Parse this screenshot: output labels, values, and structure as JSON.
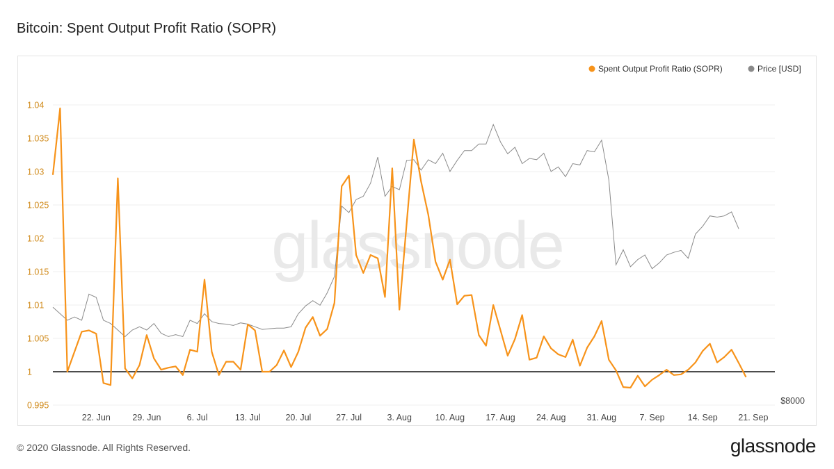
{
  "page": {
    "title": "Bitcoin: Spent Output Profit Ratio (SOPR)",
    "copyright": "© 2020 Glassnode. All Rights Reserved.",
    "logo_text": "glassnode",
    "watermark": "glassnode"
  },
  "colors": {
    "sopr": "#f7931a",
    "price": "#8a8a8a",
    "baseline": "#111111",
    "grid": "#efefef"
  },
  "chart_data": {
    "type": "line",
    "title": "Bitcoin: Spent Output Profit Ratio (SOPR)",
    "xlabel": "",
    "ylabel": "",
    "ylim": [
      0.995,
      1.04
    ],
    "y_ticks": [
      "1.04",
      "1.035",
      "1.03",
      "1.025",
      "1.02",
      "1.015",
      "1.01",
      "1.005",
      "1",
      "0.995"
    ],
    "y_tick_values": [
      1.04,
      1.035,
      1.03,
      1.025,
      1.02,
      1.015,
      1.01,
      1.005,
      1.0,
      0.995
    ],
    "x_range": [
      "2020-06-16",
      "2020-09-24"
    ],
    "x_ticks": [
      {
        "label": "22. Jun",
        "date": "2020-06-22"
      },
      {
        "label": "29. Jun",
        "date": "2020-06-29"
      },
      {
        "label": "6. Jul",
        "date": "2020-07-06"
      },
      {
        "label": "13. Jul",
        "date": "2020-07-13"
      },
      {
        "label": "20. Jul",
        "date": "2020-07-20"
      },
      {
        "label": "27. Jul",
        "date": "2020-07-27"
      },
      {
        "label": "3. Aug",
        "date": "2020-08-03"
      },
      {
        "label": "10. Aug",
        "date": "2020-08-10"
      },
      {
        "label": "17. Aug",
        "date": "2020-08-17"
      },
      {
        "label": "24. Aug",
        "date": "2020-08-24"
      },
      {
        "label": "31. Aug",
        "date": "2020-08-31"
      },
      {
        "label": "7. Sep",
        "date": "2020-09-07"
      },
      {
        "label": "14. Sep",
        "date": "2020-09-14"
      },
      {
        "label": "21. Sep",
        "date": "2020-09-21"
      }
    ],
    "right_axis": {
      "label": "$8000",
      "value": 8000,
      "price_range_usd": [
        8000,
        12600
      ]
    },
    "baseline": 1.0,
    "grid": true,
    "legend_position": "top-right",
    "series": [
      {
        "name": "Spent Output Profit Ratio (SOPR)",
        "axis": "left",
        "start_date": "2020-06-16",
        "step_days": 1,
        "values": [
          1.0295,
          1.0395,
          1.0,
          1.003,
          1.006,
          1.0062,
          1.0057,
          0.9983,
          0.998,
          1.029,
          1.0005,
          0.999,
          1.001,
          1.0055,
          1.002,
          1.0003,
          1.0006,
          1.0008,
          0.9995,
          1.0033,
          1.003,
          1.0138,
          1.003,
          0.9995,
          1.0015,
          1.0015,
          1.0003,
          1.0071,
          1.0062,
          1.0,
          1.0,
          1.001,
          1.0032,
          1.0007,
          1.003,
          1.0066,
          1.0082,
          1.0054,
          1.0064,
          1.0103,
          1.0278,
          1.0294,
          1.0175,
          1.0148,
          1.0175,
          1.017,
          1.0112,
          1.0305,
          1.0093,
          1.0222,
          1.0348,
          1.0285,
          1.0235,
          1.0165,
          1.0138,
          1.0168,
          1.0101,
          1.0114,
          1.0115,
          1.0055,
          1.0039,
          1.01,
          1.0062,
          1.0024,
          1.0049,
          1.0085,
          1.0018,
          1.0021,
          1.0053,
          1.0035,
          1.0026,
          1.0022,
          1.0048,
          1.0009,
          1.0036,
          1.0053,
          1.0076,
          1.0018,
          1.0002,
          0.9977,
          0.9976,
          0.9994,
          0.9978,
          0.9988,
          0.9995,
          1.0003,
          0.9995,
          0.9996,
          1.0003,
          1.0014,
          1.0031,
          1.0042,
          1.0014,
          1.0022,
          1.0033,
          1.0013,
          0.9992
        ]
      },
      {
        "name": "Price [USD]",
        "axis": "right",
        "start_date": "2020-06-16",
        "step_days": 1,
        "values": [
          9500,
          9400,
          9300,
          9350,
          9300,
          9700,
          9650,
          9300,
          9250,
          9150,
          9050,
          9150,
          9200,
          9150,
          9250,
          9100,
          9050,
          9080,
          9050,
          9300,
          9250,
          9400,
          9280,
          9250,
          9240,
          9220,
          9260,
          9240,
          9200,
          9160,
          9170,
          9180,
          9180,
          9200,
          9400,
          9520,
          9600,
          9530,
          9720,
          9970,
          11050,
          10950,
          11150,
          11200,
          11400,
          11800,
          11200,
          11350,
          11300,
          11750,
          11760,
          11600,
          11760,
          11700,
          11860,
          11580,
          11750,
          11900,
          11900,
          12000,
          12000,
          12300,
          12030,
          11850,
          11950,
          11700,
          11780,
          11760,
          11860,
          11580,
          11650,
          11500,
          11700,
          11680,
          11900,
          11880,
          12060,
          11450,
          10150,
          10380,
          10120,
          10230,
          10300,
          10090,
          10180,
          10300,
          10340,
          10370,
          10250,
          10620,
          10740,
          10900,
          10880,
          10900,
          10960,
          10700
        ]
      }
    ]
  }
}
